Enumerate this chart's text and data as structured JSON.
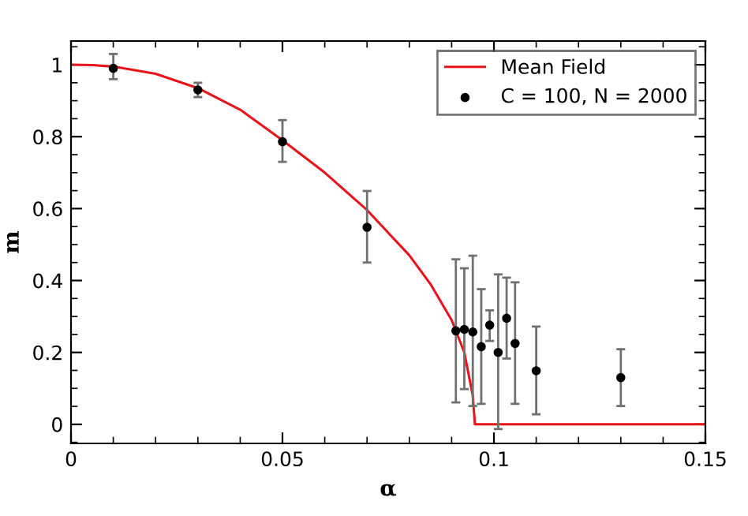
{
  "chart_data": {
    "type": "line",
    "xlabel": "α",
    "ylabel": "m",
    "xlim": [
      0,
      0.15
    ],
    "ylim": [
      -0.053,
      1.066
    ],
    "xticks": [
      0,
      0.05,
      0.1,
      0.15
    ],
    "yticks": [
      0,
      0.2,
      0.4,
      0.6,
      0.8,
      1
    ],
    "grid": false,
    "legend": "top right",
    "series": [
      {
        "name": "Mean Field",
        "color": "#e8141c",
        "marker": "none",
        "x": [
          0,
          0.005,
          0.01,
          0.02,
          0.03,
          0.04,
          0.05,
          0.06,
          0.07,
          0.08,
          0.085,
          0.09,
          0.093,
          0.095,
          0.0955,
          0.15
        ],
        "values": [
          1,
          0.999,
          0.995,
          0.975,
          0.935,
          0.875,
          0.79,
          0.7,
          0.596,
          0.47,
          0.39,
          0.29,
          0.2,
          0.08,
          0,
          0
        ]
      },
      {
        "name": "C = 100, N = 2000",
        "type": "scatter",
        "color": "#000000",
        "marker": "circle",
        "x": [
          0.01,
          0.03,
          0.05,
          0.07,
          0.091,
          0.093,
          0.095,
          0.097,
          0.099,
          0.101,
          0.103,
          0.105,
          0.11,
          0.13
        ],
        "values": [
          0.99,
          0.93,
          0.786,
          0.548,
          0.26,
          0.264,
          0.257,
          0.216,
          0.276,
          0.2,
          0.295,
          0.225,
          0.149,
          0.13
        ],
        "errors": [
          [
            0.96,
            1.03
          ],
          [
            0.91,
            0.95
          ],
          [
            0.73,
            0.846
          ],
          [
            0.45,
            0.649
          ],
          [
            0.061,
            0.459
          ],
          [
            0.098,
            0.434
          ],
          [
            0.051,
            0.469
          ],
          [
            0.057,
            0.376
          ],
          [
            0.232,
            0.317
          ],
          [
            -0.013,
            0.417
          ],
          [
            0.183,
            0.408
          ],
          [
            0.057,
            0.395
          ],
          [
            0.028,
            0.272
          ],
          [
            0.051,
            0.209
          ]
        ]
      }
    ]
  }
}
